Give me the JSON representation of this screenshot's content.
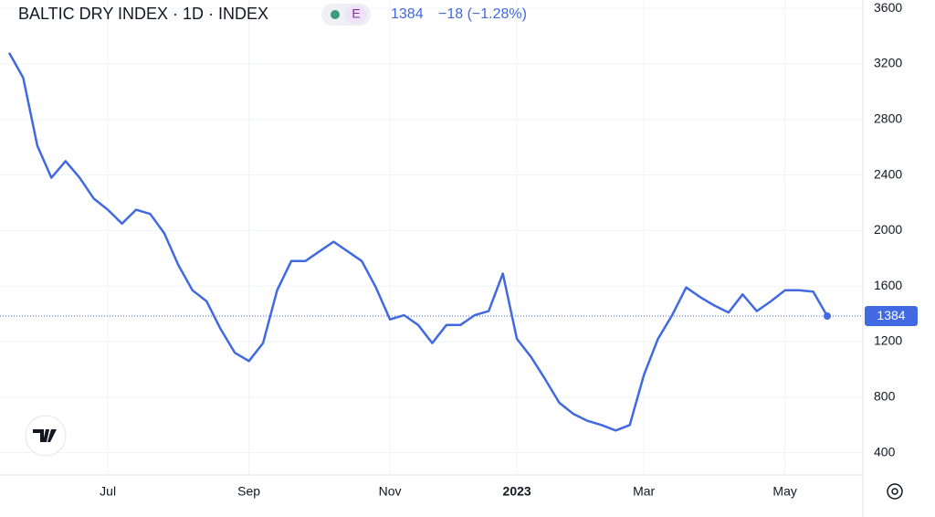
{
  "chart_data": {
    "type": "line",
    "title": "BALTIC DRY INDEX · 1D · INDEX",
    "badge": "E",
    "last_value": 1384,
    "change": "−18 (−1.28%)",
    "categories": [
      null,
      null,
      null,
      null,
      null,
      null,
      null,
      "Jul",
      null,
      null,
      null,
      null,
      null,
      null,
      null,
      null,
      null,
      "Sep",
      null,
      null,
      null,
      null,
      null,
      null,
      null,
      null,
      null,
      "Nov",
      null,
      null,
      null,
      null,
      null,
      null,
      null,
      null,
      "2023",
      null,
      null,
      null,
      null,
      null,
      null,
      null,
      null,
      "Mar",
      null,
      null,
      null,
      null,
      null,
      null,
      null,
      null,
      null,
      "May",
      null,
      null,
      null
    ],
    "series": [
      {
        "color": "#4169e1",
        "values": [
          3280,
          3100,
          2610,
          2380,
          2500,
          2380,
          2230,
          2150,
          2050,
          2150,
          2120,
          1980,
          1750,
          1570,
          1490,
          1290,
          1120,
          1060,
          1190,
          1570,
          1780,
          1780,
          1850,
          1920,
          1850,
          1780,
          1590,
          1360,
          1390,
          1320,
          1190,
          1320,
          1320,
          1390,
          1420,
          1690,
          1220,
          1090,
          930,
          760,
          680,
          630,
          600,
          560,
          600,
          960,
          1220,
          1390,
          1590,
          1520,
          1460,
          1410,
          1540,
          1420,
          1490,
          1570,
          1570,
          1560,
          1384
        ]
      }
    ],
    "ylim": [
      240,
      3660
    ],
    "yticks": [
      400,
      800,
      1200,
      1600,
      2000,
      2400,
      2800,
      3200,
      3600
    ],
    "grid": true
  }
}
